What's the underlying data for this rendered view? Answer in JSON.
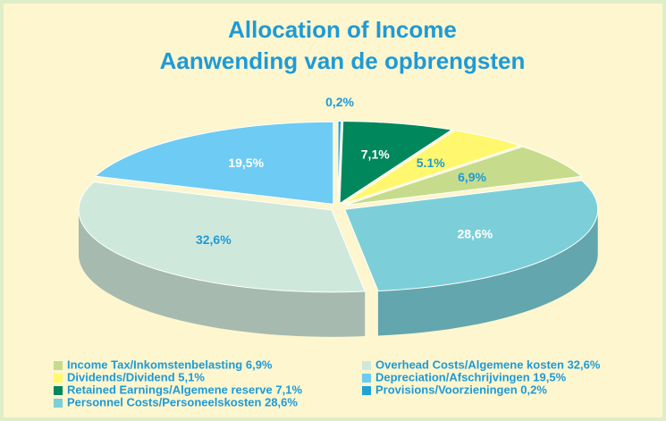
{
  "chart_data": {
    "type": "pie3d",
    "title": "Allocation of Income",
    "subtitle": "Aanwending van de opbrengsten",
    "categories": [
      "Provisions/Voorzieningen 0,2%",
      "Retained Earnings/Algemene reserve 7,1%",
      "Dividends/Dividend 5,1%",
      "Income Tax/Inkomstenbelasting 6,9%",
      "Personnel Costs/Personeelskosten 28,6%",
      "Overhead Costs/Algemene kosten 32,6%",
      "Depreciation/Afschrijvingen 19,5%"
    ],
    "values": [
      0.2,
      7.1,
      5.1,
      6.9,
      28.6,
      32.6,
      19.5
    ],
    "value_labels": [
      "0,2%",
      "7,1%",
      "5.1%",
      "6,9%",
      "28,6%",
      "32,6%",
      "19,5%"
    ],
    "colors": [
      "#1ea3d9",
      "#00875c",
      "#fff86e",
      "#c6dc8c",
      "#7ccfd8",
      "#cfe8dc",
      "#6ecbf3"
    ],
    "label_colors": [
      "#1e9ad6",
      "#ffffff",
      "#1e9ad6",
      "#1e9ad6",
      "#ffffff",
      "#1e9ad6",
      "#ffffff"
    ]
  }
}
